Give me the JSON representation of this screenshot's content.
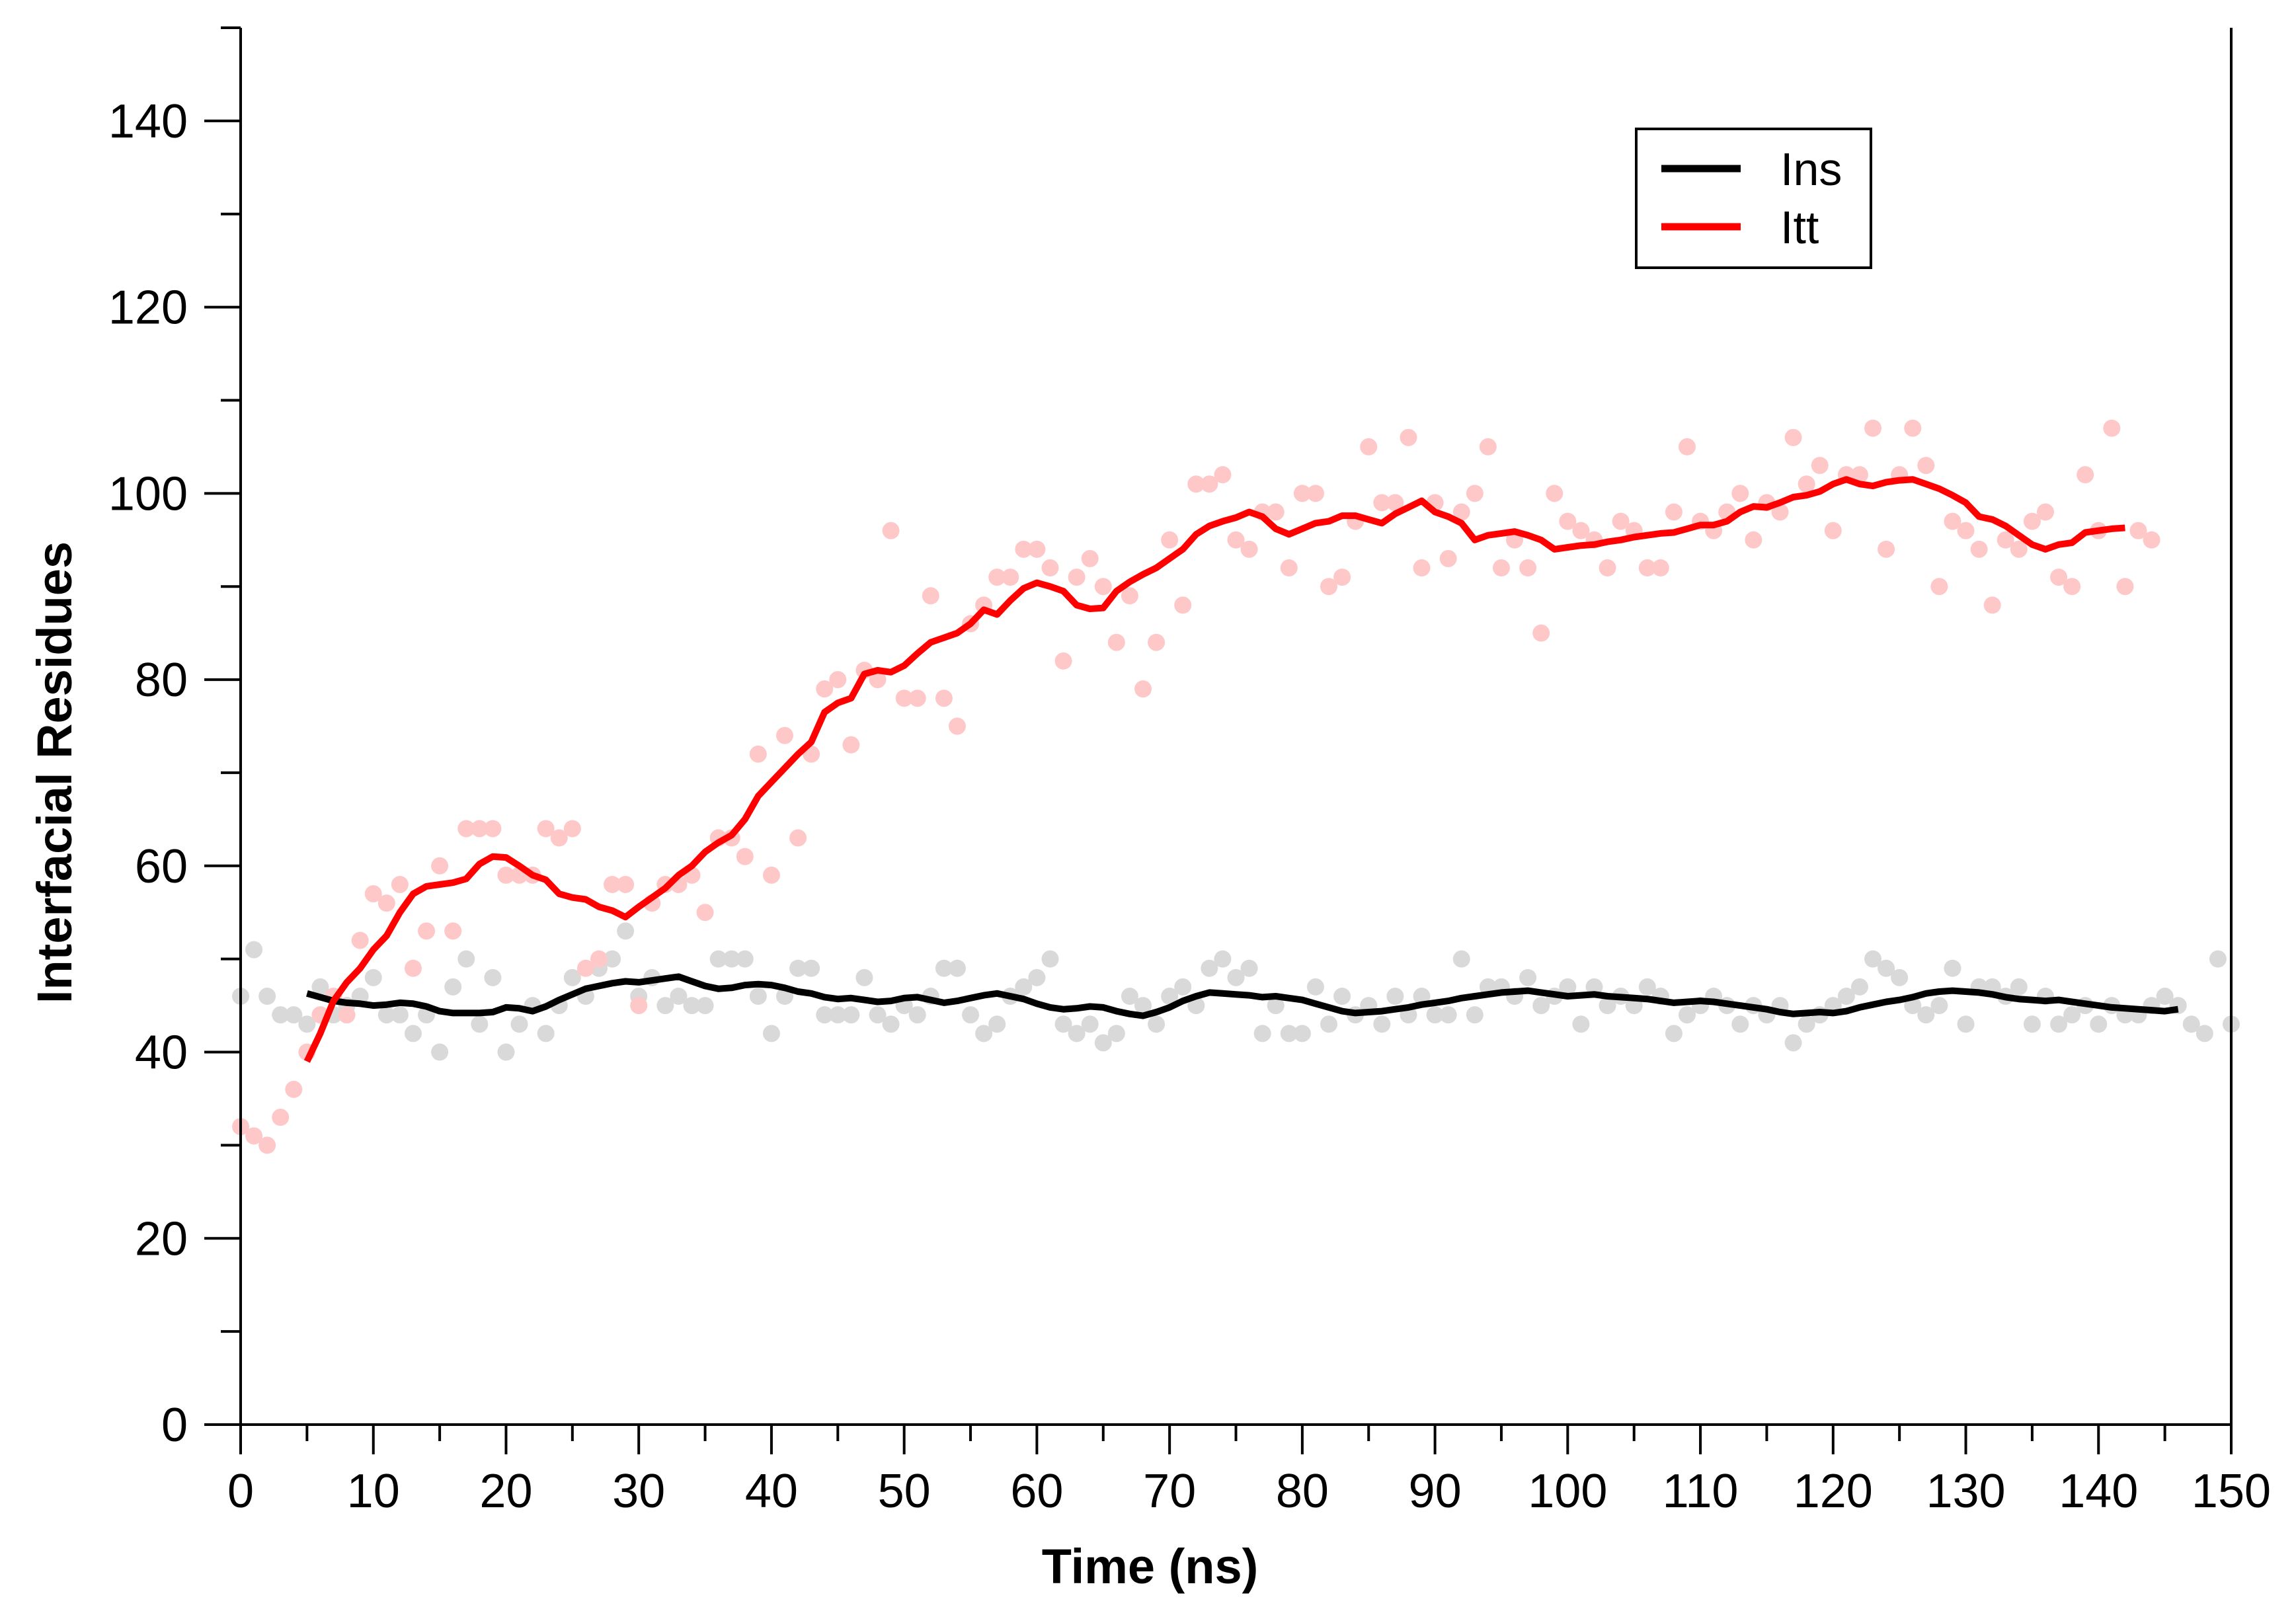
{
  "chart_data": {
    "type": "line",
    "title": "",
    "xlabel": "Time (ns)",
    "ylabel": "Interfacial Residues",
    "xlim": [
      0,
      150
    ],
    "ylim": [
      0,
      150
    ],
    "xticks": [
      0,
      10,
      20,
      30,
      40,
      50,
      60,
      70,
      80,
      90,
      100,
      110,
      120,
      130,
      140,
      150
    ],
    "yticks": [
      0,
      20,
      40,
      60,
      80,
      100,
      120,
      140
    ],
    "grid": false,
    "legend": {
      "position": "top-right",
      "entries": [
        "Ins",
        "Itt"
      ]
    },
    "series": [
      {
        "name": "Ins",
        "line_color": "#000000",
        "point_color": "#d9d9d9",
        "raw_x": [
          0,
          1,
          2,
          3,
          4,
          5,
          6,
          7,
          8,
          9,
          10,
          11,
          12,
          13,
          14,
          15,
          16,
          17,
          18,
          19,
          20,
          21,
          22,
          23,
          24,
          25,
          26,
          27,
          28,
          29,
          30,
          31,
          32,
          33,
          34,
          35,
          36,
          37,
          38,
          39,
          40,
          41,
          42,
          43,
          44,
          45,
          46,
          47,
          48,
          49,
          50,
          51,
          52,
          53,
          54,
          55,
          56,
          57,
          58,
          59,
          60,
          61,
          62,
          63,
          64,
          65,
          66,
          67,
          68,
          69,
          70,
          71,
          72,
          73,
          74,
          75,
          76,
          77,
          78,
          79,
          80,
          81,
          82,
          83,
          84,
          85,
          86,
          87,
          88,
          89,
          90,
          91,
          92,
          93,
          94,
          95,
          96,
          97,
          98,
          99,
          100,
          101,
          102,
          103,
          104,
          105,
          106,
          107,
          108,
          109,
          110,
          111,
          112,
          113,
          114,
          115,
          116,
          117,
          118,
          119,
          120,
          121,
          122,
          123,
          124,
          125,
          126,
          127,
          128,
          129,
          130,
          131,
          132,
          133,
          134,
          135,
          136,
          137,
          138,
          139,
          140,
          141,
          142,
          143,
          144,
          145,
          146,
          147,
          148,
          149,
          150
        ],
        "raw_y": [
          46,
          51,
          46,
          44,
          44,
          43,
          47,
          44,
          45,
          46,
          48,
          44,
          44,
          42,
          44,
          40,
          47,
          50,
          43,
          48,
          40,
          43,
          45,
          42,
          45,
          48,
          46,
          49,
          50,
          53,
          46,
          48,
          45,
          46,
          45,
          45,
          50,
          50,
          50,
          46,
          42,
          46,
          49,
          49,
          44,
          44,
          44,
          48,
          44,
          43,
          45,
          44,
          46,
          49,
          49,
          44,
          42,
          43,
          46,
          47,
          48,
          50,
          43,
          42,
          43,
          41,
          42,
          46,
          45,
          43,
          46,
          47,
          45,
          49,
          50,
          48,
          49,
          42,
          45,
          42,
          42,
          47,
          43,
          46,
          44,
          45,
          43,
          46,
          44,
          46,
          44,
          44,
          50,
          44,
          47,
          47,
          46,
          48,
          45,
          46,
          47,
          43,
          47,
          45,
          46,
          45,
          47,
          46,
          42,
          44,
          45,
          46,
          45,
          43,
          45,
          44,
          45,
          41,
          43,
          44,
          45,
          46,
          47,
          50,
          49,
          48,
          45,
          44,
          45,
          49,
          43,
          47,
          47,
          46,
          47,
          43,
          46,
          43,
          44,
          45,
          43,
          45,
          44,
          44,
          45,
          46,
          45,
          43,
          42,
          50,
          43
        ],
        "smooth_x": [
          5,
          6,
          7,
          8,
          9,
          10,
          11,
          12,
          13,
          14,
          15,
          16,
          17,
          18,
          19,
          20,
          21,
          22,
          23,
          24,
          25,
          26,
          27,
          28,
          29,
          30,
          31,
          32,
          33,
          34,
          35,
          36,
          37,
          38,
          39,
          40,
          41,
          42,
          43,
          44,
          45,
          46,
          47,
          48,
          49,
          50,
          51,
          52,
          53,
          54,
          55,
          56,
          57,
          58,
          59,
          60,
          61,
          62,
          63,
          64,
          65,
          66,
          67,
          68,
          69,
          70,
          71,
          72,
          73,
          74,
          75,
          76,
          77,
          78,
          79,
          80,
          81,
          82,
          83,
          84,
          85,
          86,
          87,
          88,
          89,
          90,
          91,
          92,
          93,
          94,
          95,
          96,
          97,
          98,
          99,
          100,
          101,
          102,
          103,
          104,
          105,
          106,
          107,
          108,
          109,
          110,
          111,
          112,
          113,
          114,
          115,
          116,
          117,
          118,
          119,
          120,
          121,
          122,
          123,
          124,
          125,
          126,
          127,
          128,
          129,
          130,
          131,
          132,
          133,
          134,
          135,
          136,
          137,
          138,
          139,
          140,
          141,
          142,
          143,
          144,
          145,
          146
        ],
        "smooth_y": [
          46.3,
          45.9,
          45.5,
          45.3,
          45.2,
          45.0,
          45.1,
          45.3,
          45.2,
          44.9,
          44.4,
          44.2,
          44.2,
          44.2,
          44.3,
          44.8,
          44.7,
          44.4,
          44.9,
          45.6,
          46.2,
          46.8,
          47.1,
          47.4,
          47.6,
          47.5,
          47.7,
          47.9,
          48.1,
          47.6,
          47.1,
          46.8,
          46.9,
          47.2,
          47.3,
          47.2,
          46.9,
          46.5,
          46.3,
          45.9,
          45.7,
          45.8,
          45.6,
          45.4,
          45.5,
          45.8,
          45.9,
          45.6,
          45.3,
          45.5,
          45.8,
          46.1,
          46.3,
          46.0,
          45.7,
          45.2,
          44.8,
          44.6,
          44.7,
          44.9,
          44.8,
          44.4,
          44.1,
          43.9,
          44.3,
          44.8,
          45.5,
          46.0,
          46.4,
          46.3,
          46.2,
          46.1,
          45.9,
          46.0,
          45.8,
          45.6,
          45.2,
          44.8,
          44.4,
          44.2,
          44.3,
          44.4,
          44.6,
          44.8,
          45.1,
          45.3,
          45.5,
          45.8,
          46.0,
          46.2,
          46.4,
          46.5,
          46.6,
          46.4,
          46.2,
          46.0,
          46.1,
          46.2,
          46.0,
          45.9,
          45.8,
          45.7,
          45.5,
          45.3,
          45.4,
          45.5,
          45.4,
          45.2,
          45.0,
          44.8,
          44.6,
          44.3,
          44.1,
          44.2,
          44.3,
          44.2,
          44.4,
          44.8,
          45.1,
          45.4,
          45.6,
          45.9,
          46.3,
          46.5,
          46.6,
          46.5,
          46.4,
          46.2,
          45.9,
          45.7,
          45.6,
          45.5,
          45.6,
          45.4,
          45.2,
          45.0,
          44.8,
          44.7,
          44.6,
          44.5,
          44.4,
          44.6,
          44.5,
          44.3,
          44.7,
          44.8
        ]
      },
      {
        "name": "Itt",
        "line_color": "#ff0000",
        "point_color": "#ffc8c8",
        "raw_x": [
          0,
          1,
          2,
          3,
          4,
          5,
          6,
          7,
          8,
          9,
          10,
          11,
          12,
          13,
          14,
          15,
          16,
          17,
          18,
          19,
          20,
          21,
          22,
          23,
          24,
          25,
          26,
          27,
          28,
          29,
          30,
          31,
          32,
          33,
          34,
          35,
          36,
          37,
          38,
          39,
          40,
          41,
          42,
          43,
          44,
          45,
          46,
          47,
          48,
          49,
          50,
          51,
          52,
          53,
          54,
          55,
          56,
          57,
          58,
          59,
          60,
          61,
          62,
          63,
          64,
          65,
          66,
          67,
          68,
          69,
          70,
          71,
          72,
          73,
          74,
          75,
          76,
          77,
          78,
          79,
          80,
          81,
          82,
          83,
          84,
          85,
          86,
          87,
          88,
          89,
          90,
          91,
          92,
          93,
          94,
          95,
          96,
          97,
          98,
          99,
          100,
          101,
          102,
          103,
          104,
          105,
          106,
          107,
          108,
          109,
          110,
          111,
          112,
          113,
          114,
          115,
          116,
          117,
          118,
          119,
          120,
          121,
          122,
          123,
          124,
          125,
          126,
          127,
          128,
          129,
          130,
          131,
          132,
          133,
          134,
          135,
          136,
          137,
          138,
          139,
          140,
          141,
          142,
          143,
          144,
          145,
          146,
          147,
          148,
          149,
          150
        ],
        "raw_y": [
          32,
          31,
          30,
          33,
          36,
          40,
          44,
          46,
          44,
          52,
          57,
          56,
          58,
          49,
          53,
          60,
          53,
          64,
          64,
          64,
          59,
          59,
          59,
          64,
          63,
          64,
          49,
          50,
          58,
          58,
          45,
          56,
          58,
          58,
          59,
          55,
          63,
          63,
          61,
          72,
          59,
          74,
          63,
          72,
          79,
          80,
          73,
          81,
          80,
          96,
          78,
          78,
          89,
          78,
          75,
          86,
          88,
          91,
          91,
          94,
          94,
          92,
          82,
          91,
          93,
          90,
          84,
          89,
          79,
          84,
          95,
          88,
          101,
          101,
          102,
          95,
          94,
          98,
          98,
          92,
          100,
          100,
          90,
          91,
          97,
          105,
          99,
          99,
          106,
          92,
          99,
          93,
          98,
          100,
          105,
          92,
          95,
          92,
          85,
          100,
          97,
          96,
          95,
          92,
          97,
          96,
          92,
          92,
          98,
          105,
          97,
          96,
          98,
          100,
          95,
          99,
          98,
          106,
          101,
          103,
          96,
          102,
          102,
          107,
          94,
          102,
          107,
          103,
          90,
          97,
          96,
          94,
          88,
          95,
          94,
          97,
          98,
          91,
          90,
          102,
          96,
          107,
          90,
          96,
          95
        ],
        "smooth_x": [
          5,
          6,
          7,
          8,
          9,
          10,
          11,
          12,
          13,
          14,
          15,
          16,
          17,
          18,
          19,
          20,
          21,
          22,
          23,
          24,
          25,
          26,
          27,
          28,
          29,
          30,
          31,
          32,
          33,
          34,
          35,
          36,
          37,
          38,
          39,
          40,
          41,
          42,
          43,
          44,
          45,
          46,
          47,
          48,
          49,
          50,
          51,
          52,
          53,
          54,
          55,
          56,
          57,
          58,
          59,
          60,
          61,
          62,
          63,
          64,
          65,
          66,
          67,
          68,
          69,
          70,
          71,
          72,
          73,
          74,
          75,
          76,
          77,
          78,
          79,
          80,
          81,
          82,
          83,
          84,
          85,
          86,
          87,
          88,
          89,
          90,
          91,
          92,
          93,
          94,
          95,
          96,
          97,
          98,
          99,
          100,
          101,
          102,
          103,
          104,
          105,
          106,
          107,
          108,
          109,
          110,
          111,
          112,
          113,
          114,
          115,
          116,
          117,
          118,
          119,
          120,
          121,
          122,
          123,
          124,
          125,
          126,
          127,
          128,
          129,
          130,
          131,
          132,
          133,
          134,
          135,
          136,
          137,
          138,
          139,
          140,
          141,
          142,
          143,
          144,
          145,
          146
        ],
        "smooth_y": [
          39.0,
          42.0,
          45.5,
          47.5,
          49.0,
          51.0,
          52.5,
          55.0,
          57.0,
          57.8,
          58.0,
          58.2,
          58.6,
          60.2,
          61.0,
          60.9,
          60.0,
          59.0,
          58.5,
          57.0,
          56.6,
          56.4,
          55.6,
          55.2,
          54.5,
          55.6,
          56.6,
          57.6,
          59.0,
          60.0,
          61.5,
          62.5,
          63.3,
          65.0,
          67.5,
          69.0,
          70.5,
          72.0,
          73.3,
          76.5,
          77.5,
          78.0,
          80.6,
          81.0,
          80.8,
          81.5,
          82.8,
          84.0,
          84.5,
          85.0,
          86.0,
          87.5,
          87.0,
          88.5,
          89.8,
          90.4,
          90.0,
          89.5,
          88.0,
          87.6,
          87.7,
          89.5,
          90.5,
          91.3,
          92.0,
          93.0,
          94.0,
          95.6,
          96.5,
          97.0,
          97.4,
          98.0,
          97.5,
          96.2,
          95.6,
          96.2,
          96.8,
          97.0,
          97.6,
          97.6,
          97.2,
          96.8,
          97.8,
          98.5,
          99.2,
          98.0,
          97.5,
          96.8,
          95.0,
          95.5,
          95.7,
          95.9,
          95.5,
          95.0,
          94.0,
          94.2,
          94.4,
          94.5,
          94.8,
          95.0,
          95.3,
          95.5,
          95.7,
          95.8,
          96.2,
          96.6,
          96.6,
          97.0,
          98.0,
          98.6,
          98.5,
          99.0,
          99.6,
          99.8,
          100.2,
          101.0,
          101.5,
          101.0,
          100.8,
          101.2,
          101.4,
          101.5,
          101.0,
          100.5,
          99.8,
          99.0,
          97.5,
          97.2,
          96.5,
          95.5,
          94.5,
          94.0,
          94.5,
          94.7,
          95.8,
          96.0,
          96.2,
          96.3
        ]
      }
    ]
  }
}
